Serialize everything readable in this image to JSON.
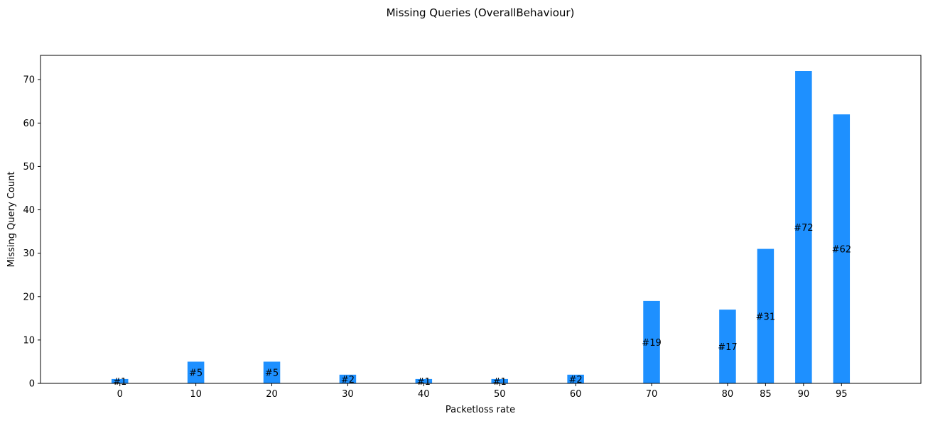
{
  "chart_data": {
    "type": "bar",
    "title": "Missing Queries (OverallBehaviour)",
    "xlabel": "Packetloss rate",
    "ylabel": "Missing Query Count",
    "x": [
      0,
      10,
      20,
      30,
      40,
      50,
      60,
      70,
      80,
      85,
      90,
      95
    ],
    "values": [
      1,
      5,
      5,
      2,
      1,
      1,
      2,
      19,
      17,
      31,
      72,
      62
    ],
    "labels": [
      "#1",
      "#5",
      "#5",
      "#2",
      "#1",
      "#1",
      "#2",
      "#19",
      "#17",
      "#31",
      "#72",
      "#62"
    ],
    "x_ticks": [
      "0",
      "10",
      "20",
      "30",
      "40",
      "50",
      "60",
      "70",
      "80",
      "85",
      "90",
      "95"
    ],
    "y_ticks": [
      "0",
      "10",
      "20",
      "30",
      "40",
      "50",
      "60",
      "70"
    ],
    "ylim": [
      0,
      75.6
    ],
    "grid": false,
    "bar_color": "#1E90FF"
  }
}
